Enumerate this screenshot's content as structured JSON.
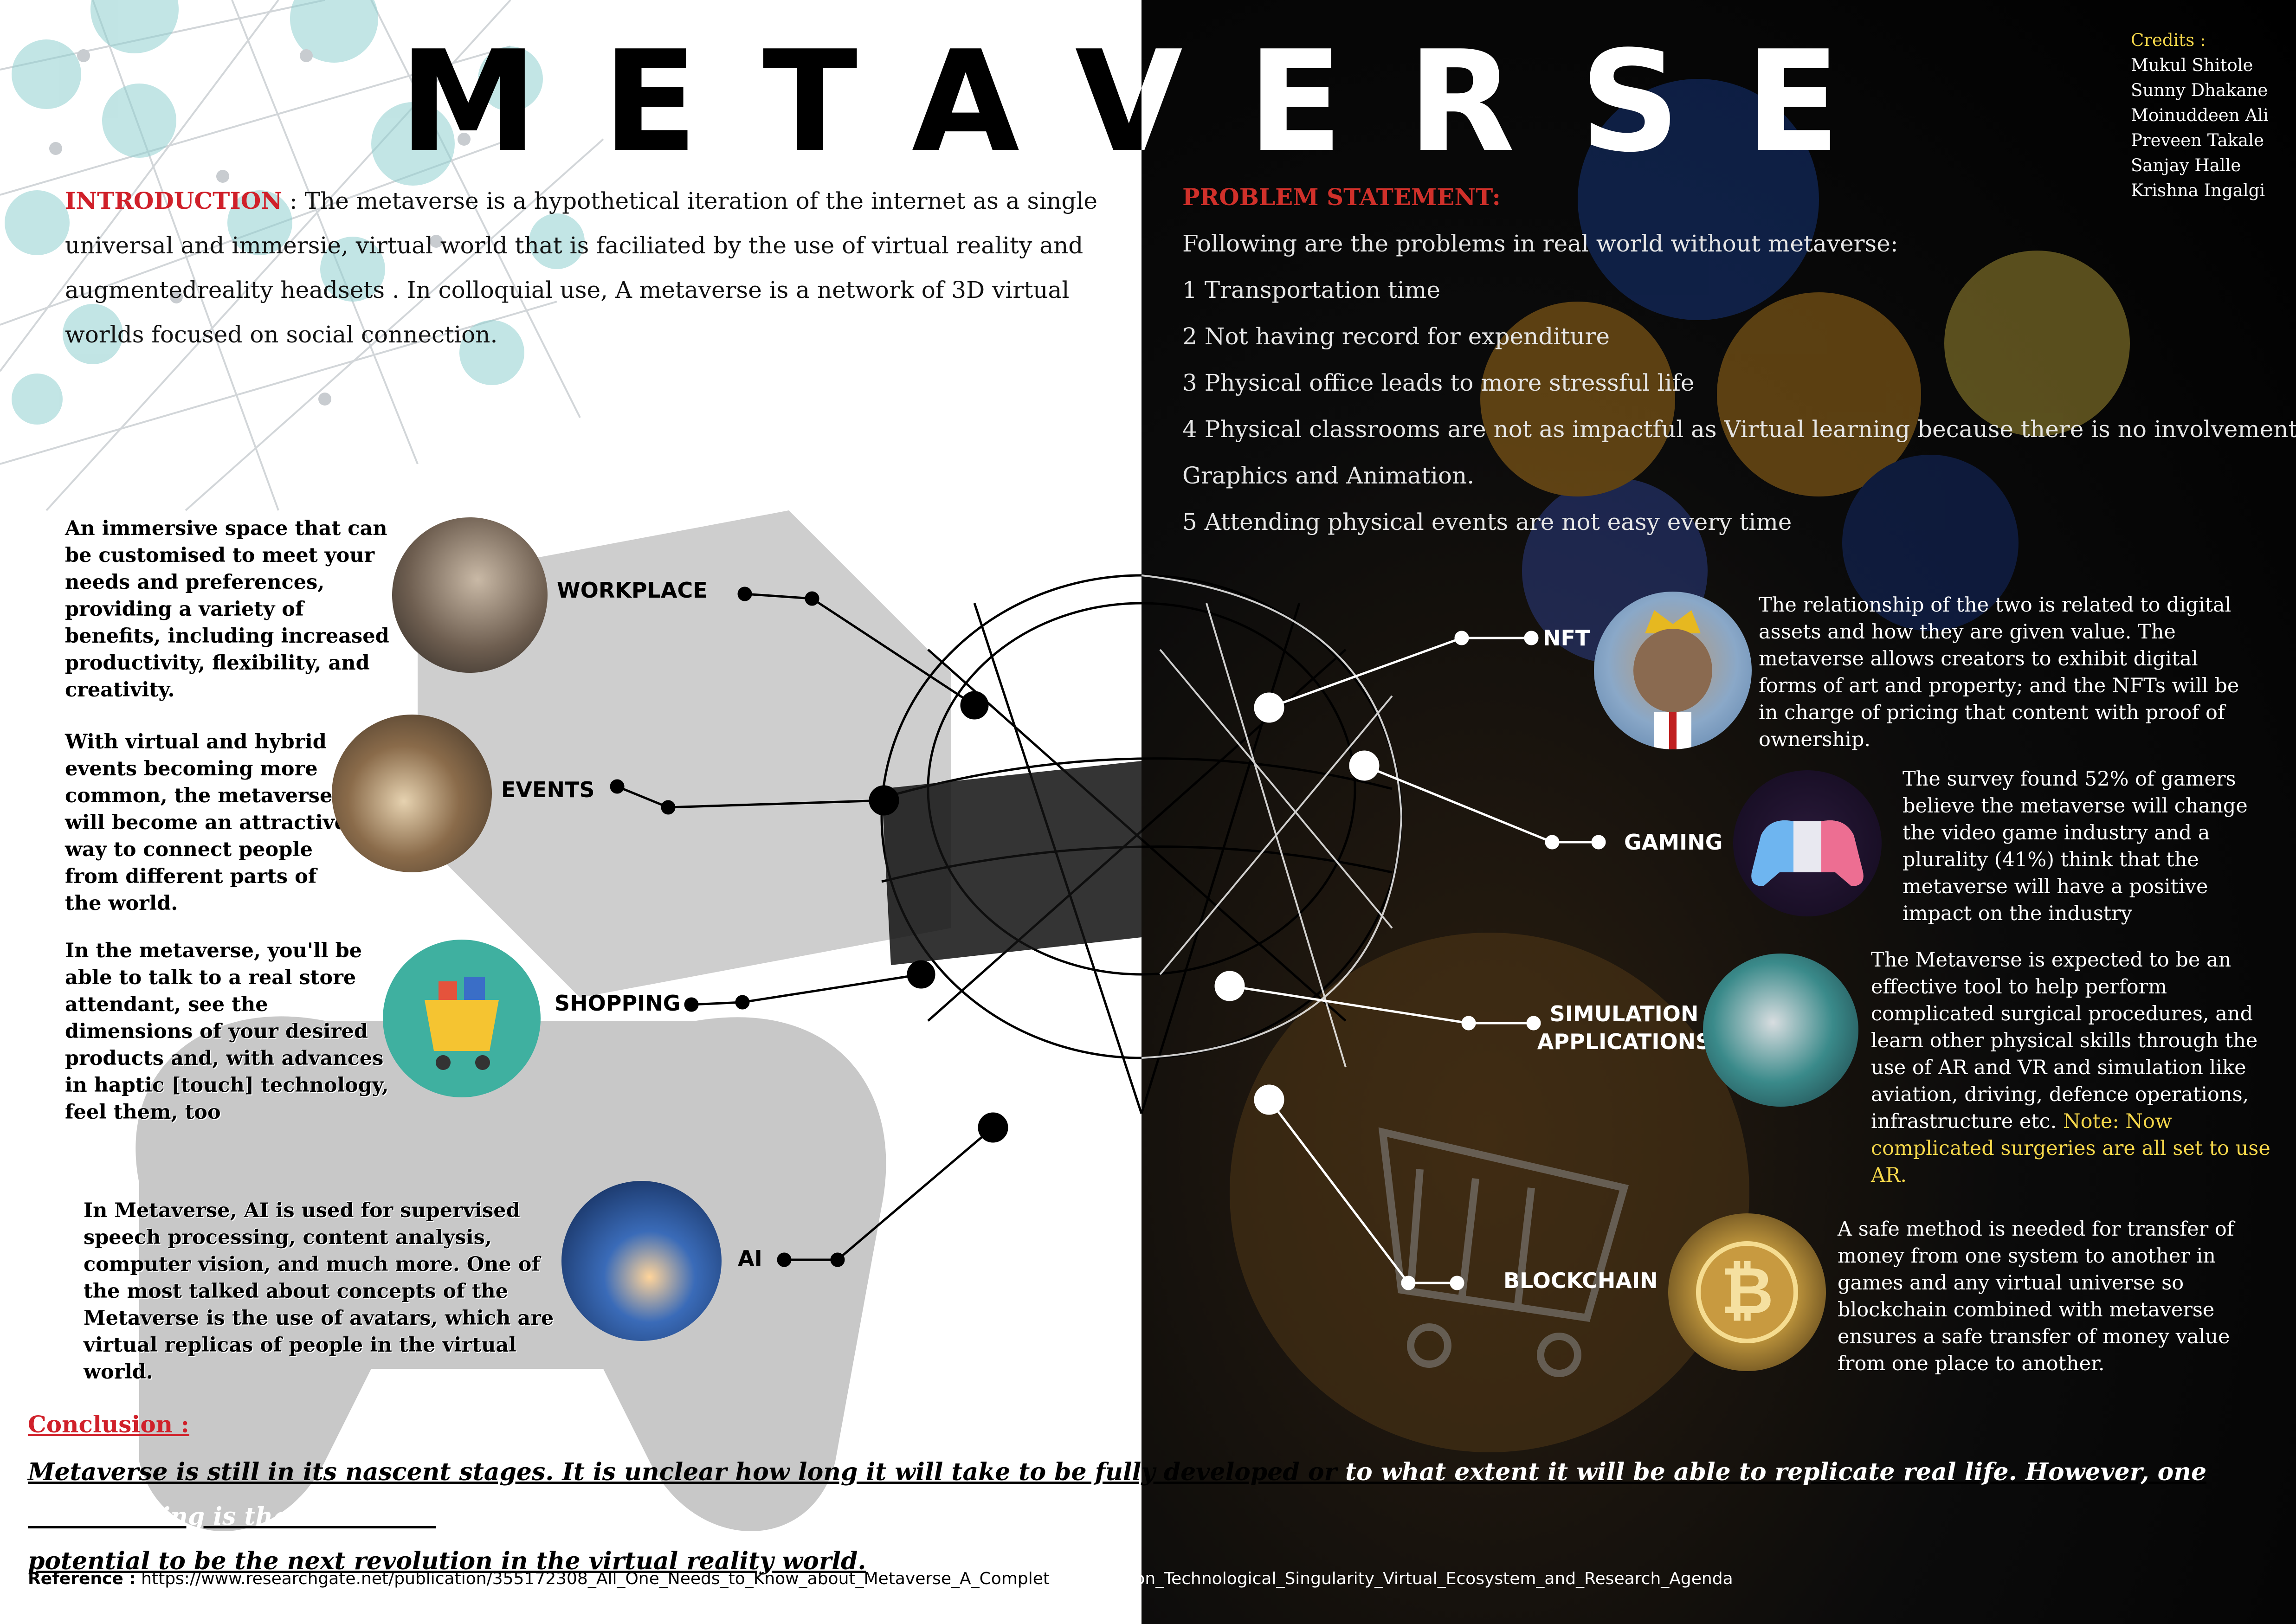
{
  "title": "METAVERSE",
  "credits": {
    "heading": "Credits :",
    "names": [
      "Mukul Shitole",
      "Sunny Dhakane",
      "Moinuddeen Ali",
      "Preveen Takale",
      "Sanjay Halle",
      "Krishna Ingalgi"
    ]
  },
  "introduction": {
    "label": "INTRODUCTION",
    "text": " : The metaverse is a hypothetical iteration of the internet as a single universal and immersie, virtual world that is faciliated by the use of virtual reality and augmentedreality headsets . In colloquial use, A metaverse is a network of 3D virtual worlds focused on social connection."
  },
  "problem": {
    "label": "PROBLEM STATEMENT:",
    "lead": "Following are the problems in real world without metaverse:",
    "items": [
      "1  Transportation time",
      "2  Not having record for expenditure",
      "3  Physical office leads to more stressful life",
      "4  Physical classrooms are not as impactful as Virtual learning because there  is no involvement of",
      "Graphics and Animation.",
      "5 Attending physical events are not easy every time"
    ]
  },
  "left_topics": [
    {
      "label": "WORKPLACE",
      "desc": "An immersive space that can be customised to meet your needs and preferences, providing a variety of benefits, including increased productivity, flexibility, and creativity."
    },
    {
      "label": "EVENTS",
      "desc": "With virtual and hybrid events becoming more common, the metaverse will become an attractive way to connect people from different parts of the world."
    },
    {
      "label": "SHOPPING",
      "desc": "In the metaverse, you'll be able to talk to a real store attendant, see the dimensions of your desired products and, with advances in haptic [touch] technology, feel them, too"
    },
    {
      "label": "AI",
      "desc": "In Metaverse, AI is used for supervised speech processing, content analysis, computer vision, and much more. One of the most talked about concepts of the Metaverse is the use of avatars, which are virtual replicas of people in the virtual world."
    }
  ],
  "right_topics": [
    {
      "label": "NFT",
      "desc": "The relationship of the two is related to digital assets and how they are given value. The metaverse allows creators to exhibit digital forms of art and property; and the NFTs will be in charge of pricing that content with proof of ownership."
    },
    {
      "label": "GAMING",
      "desc": "The survey found 52% of gamers believe the metaverse will change the video game industry and a plurality (41%) think that the metaverse will have a positive impact on the industry"
    },
    {
      "label_line1": "SIMULATION",
      "label_line2": "APPLICATIONS",
      "desc": "The Metaverse is expected to be an effective tool to help perform complicated surgical procedures, and learn other physical skills through the use of AR and VR and simulation like aviation, driving, defence operations, infrastructure etc.",
      "note": "Note: Now complicated surgeries are all set to use AR."
    },
    {
      "label": "BLOCKCHAIN",
      "desc": "A safe method is needed for transfer of money from one system to another in games and any virtual universe so blockchain combined with metaverse ensures a safe transfer of money value from one place to another."
    }
  ],
  "conclusion": {
    "label": "Conclusion :",
    "line1_left": "Metaverse is still in its nascent stages. It is unclear how long it will take to be fully developed or",
    "line1_right": " to what extent it will be able to replicate real life. However,   one certain thing is that it has the",
    "line2": "potential to be the next revolution in the virtual reality world."
  },
  "reference": {
    "label": "Reference :",
    "url_left": "  https://www.researchgate.net/publication/355172308_All_One_Needs_to_Know_about_Metaverse_A_Complet",
    "url_right": "e_Survey_on_Technological_Singularity_Virtual_Ecosystem_and_Research_Agenda"
  },
  "colors": {
    "accent_red": "#d0202a",
    "note_yellow": "#f5d74a",
    "teal_icons": "#8fcfcf"
  },
  "icons": [
    "network-sphere-icon",
    "vr-headset-head-icon",
    "gamepad-icon",
    "cart-icon",
    "bitcoin-icon",
    "ape-nft-icon",
    "controller-icon",
    "surgery-vr-icon",
    "ai-hand-icon",
    "shopping-icon",
    "events-icon",
    "workplace-vr-icon"
  ]
}
